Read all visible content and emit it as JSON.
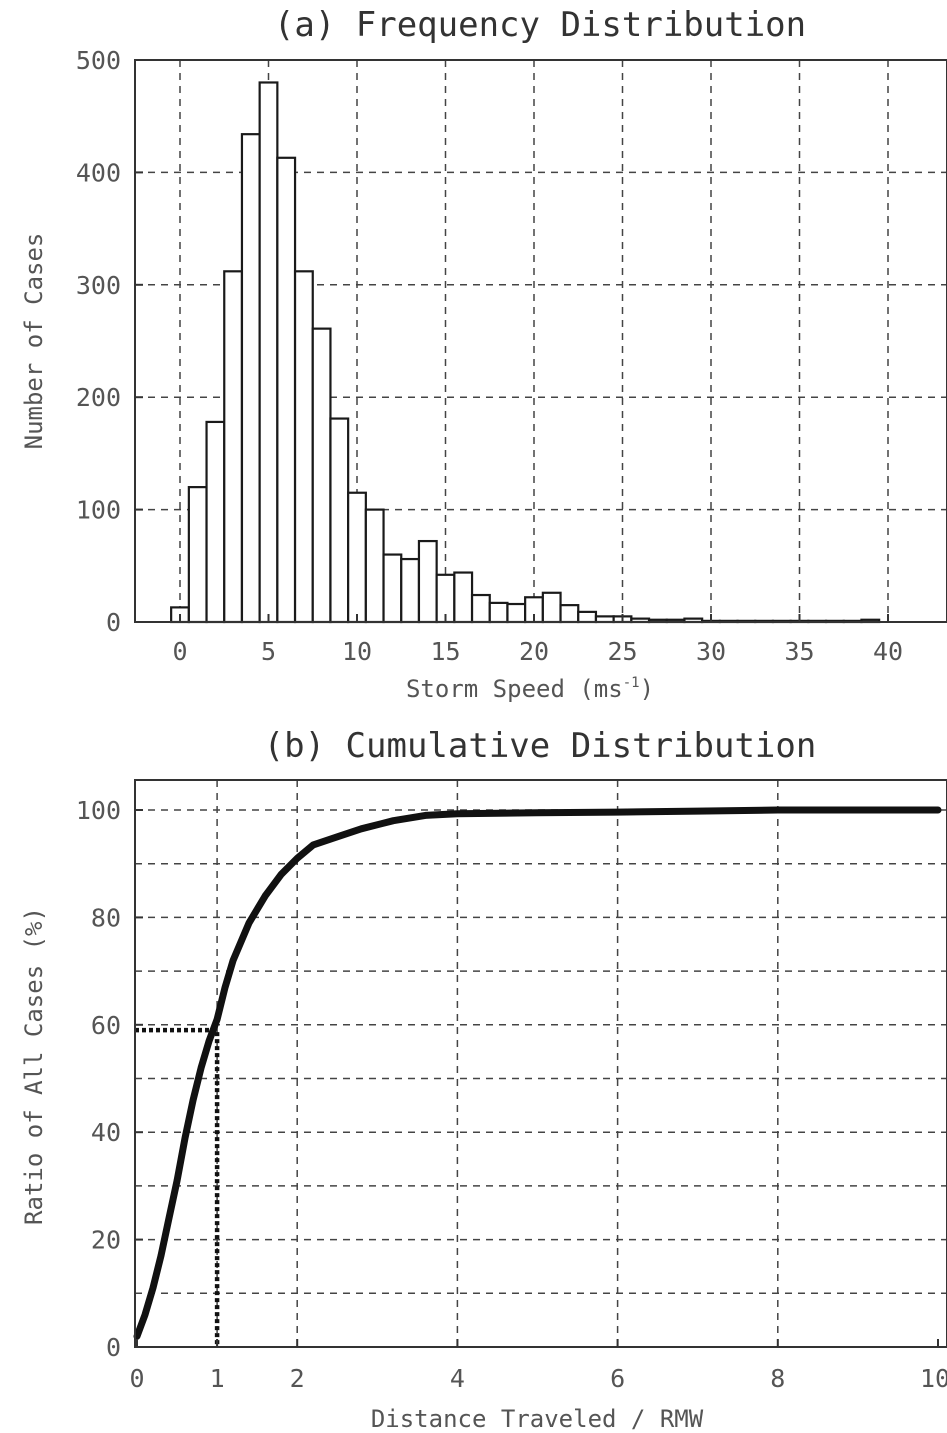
{
  "chart_data": [
    {
      "type": "bar",
      "title": "(a) Frequency Distribution",
      "xlabel": "Storm Speed (ms",
      "xlabel_sup": "-1",
      "xlabel_end": ")",
      "ylabel": "Number of Cases",
      "xlim": [
        -2,
        42
      ],
      "ylim": [
        0,
        500
      ],
      "grid": true,
      "bin_width": 1,
      "xticks": [
        0,
        5,
        10,
        15,
        20,
        25,
        30,
        35,
        40
      ],
      "yticks": [
        0,
        100,
        200,
        300,
        400,
        500
      ],
      "bin_centers": [
        0,
        1,
        2,
        3,
        4,
        5,
        6,
        7,
        8,
        9,
        10,
        11,
        12,
        13,
        14,
        15,
        16,
        17,
        18,
        19,
        20,
        21,
        22,
        23,
        24,
        25,
        26,
        27,
        28,
        29,
        30,
        31,
        32,
        33,
        34,
        35,
        36,
        37,
        38,
        39
      ],
      "values": [
        13,
        120,
        178,
        312,
        434,
        480,
        413,
        312,
        261,
        181,
        115,
        100,
        60,
        56,
        72,
        42,
        44,
        24,
        17,
        16,
        22,
        26,
        15,
        9,
        5,
        5,
        3,
        2,
        2,
        3,
        1,
        1,
        1,
        1,
        1,
        1,
        1,
        1,
        1,
        2
      ]
    },
    {
      "type": "line",
      "title": "(b) Cumulative Distribution",
      "xlabel": "Distance Traveled / RMW",
      "ylabel": "Ratio of All Cases (%)",
      "xlim": [
        0,
        10
      ],
      "ylim": [
        0,
        105
      ],
      "grid": true,
      "xticks": [
        0,
        1,
        2,
        4,
        6,
        8,
        10
      ],
      "xtick_labels": [
        "0",
        "1",
        "2",
        "4",
        "6",
        "8",
        "10"
      ],
      "yticks": [
        0,
        20,
        40,
        60,
        80,
        100
      ],
      "x": [
        0,
        0.1,
        0.2,
        0.3,
        0.4,
        0.5,
        0.6,
        0.7,
        0.8,
        0.9,
        1.0,
        1.1,
        1.2,
        1.4,
        1.6,
        1.8,
        2.0,
        2.2,
        2.5,
        2.8,
        3.2,
        3.6,
        4.0,
        5.0,
        6.0,
        7.0,
        8.0,
        9.0,
        10.0
      ],
      "y": [
        2,
        6,
        11,
        17,
        24,
        31,
        39,
        46,
        52,
        57,
        61,
        67,
        72,
        79,
        84,
        88,
        91,
        93.5,
        95,
        96.5,
        98,
        99,
        99.3,
        99.5,
        99.6,
        99.8,
        100,
        100,
        100
      ],
      "reference": {
        "x": 1,
        "y": 59
      }
    }
  ]
}
